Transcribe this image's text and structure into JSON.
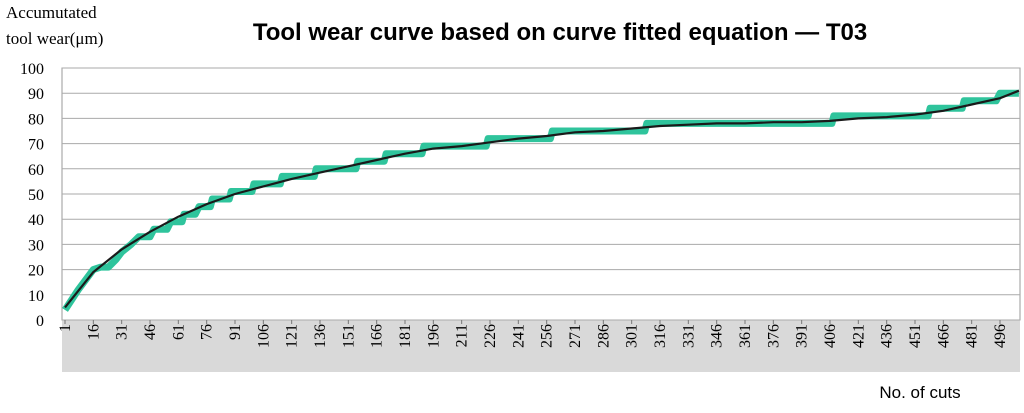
{
  "chart_data": {
    "type": "line",
    "title": "Tool wear curve based on curve fitted equation — T03",
    "ylabel": [
      "Accumutated",
      "tool wear(μm)"
    ],
    "xlabel": "No. of cuts",
    "xlim": [
      1,
      506
    ],
    "xticks": [
      1,
      16,
      31,
      46,
      61,
      76,
      91,
      106,
      121,
      136,
      151,
      166,
      181,
      196,
      211,
      226,
      241,
      256,
      271,
      286,
      301,
      316,
      331,
      346,
      361,
      376,
      391,
      406,
      421,
      436,
      451,
      466,
      481,
      496
    ],
    "ylim": [
      0,
      100
    ],
    "yticks": [
      0,
      10,
      20,
      30,
      40,
      50,
      60,
      70,
      80,
      90,
      100
    ],
    "grid": true,
    "series": [
      {
        "color": "#2fc49c",
        "x": [
          1,
          8,
          16,
          20,
          24,
          28,
          31,
          36,
          40,
          46,
          48,
          55,
          57,
          63,
          64,
          70,
          72,
          78,
          79,
          88,
          89,
          100,
          101,
          115,
          116,
          133,
          134,
          155,
          156,
          170,
          171,
          190,
          191,
          224,
          225,
          258,
          259,
          308,
          309,
          407,
          408,
          458,
          459,
          476,
          477,
          494,
          496,
          506
        ],
        "values": [
          4,
          12,
          20,
          21,
          21,
          24,
          27,
          30,
          33,
          33,
          36,
          36,
          39,
          39,
          42,
          42,
          45,
          45,
          48,
          48,
          51,
          51,
          54,
          54,
          57,
          57,
          60,
          60,
          63,
          63,
          66,
          66,
          69,
          69,
          72,
          72,
          75,
          75,
          78,
          78,
          81,
          81,
          84,
          84,
          87,
          87,
          90,
          90
        ]
      },
      {
        "color": "#1a1a1a",
        "x": [
          1,
          16,
          31,
          46,
          61,
          76,
          91,
          106,
          121,
          136,
          151,
          166,
          181,
          196,
          211,
          226,
          241,
          256,
          271,
          286,
          301,
          316,
          331,
          346,
          361,
          376,
          391,
          406,
          421,
          436,
          451,
          466,
          481,
          496,
          506
        ],
        "values": [
          5,
          19,
          28,
          35,
          41,
          46,
          50,
          53,
          56,
          58.5,
          61,
          63.5,
          66,
          68,
          69,
          70.5,
          72,
          73,
          74.5,
          75,
          76,
          77,
          77.5,
          78,
          78,
          78.5,
          78.5,
          79,
          80,
          80.5,
          81.5,
          83,
          85.5,
          88,
          91
        ]
      }
    ]
  }
}
